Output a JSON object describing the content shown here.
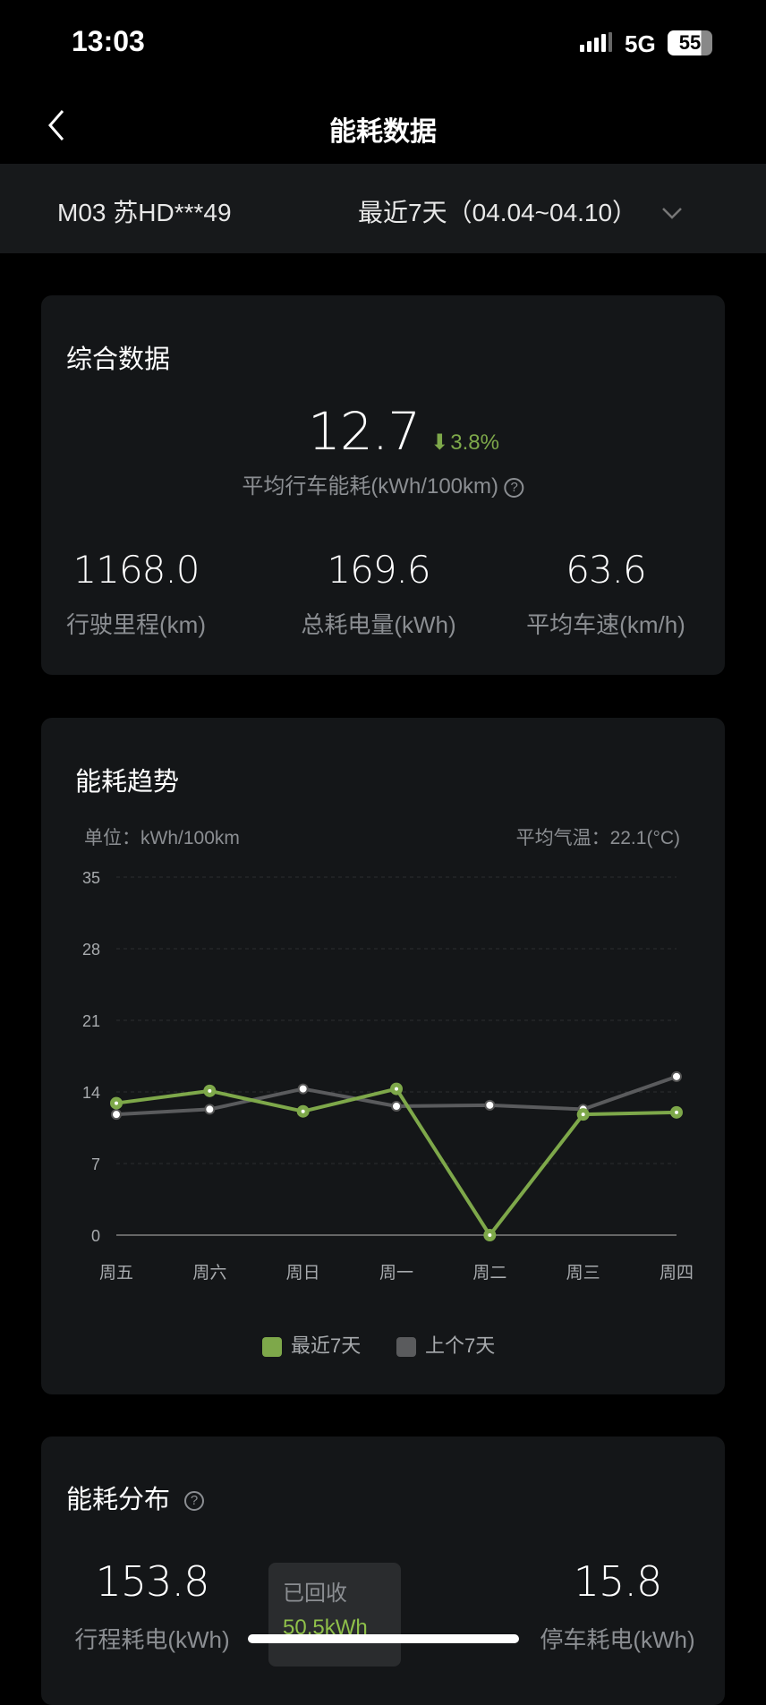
{
  "status_bar": {
    "time": "13:03",
    "network": "5G",
    "battery": "55"
  },
  "nav": {
    "title": "能耗数据",
    "back_icon": "chevron-left-icon"
  },
  "vehicle_bar": {
    "vehicle": "M03 苏HD***49",
    "period": "最近7天（04.04~04.10）"
  },
  "summary": {
    "title": "综合数据",
    "avg_consumption": "12.7",
    "change": "3.8%",
    "change_direction": "down",
    "avg_label": "平均行车能耗(kWh/100km)",
    "stats": [
      {
        "value": "1168.0",
        "label": "行驶里程(km)"
      },
      {
        "value": "169.6",
        "label": "总耗电量(kWh)"
      },
      {
        "value": "63.6",
        "label": "平均车速(km/h)"
      }
    ]
  },
  "trend": {
    "title": "能耗趋势",
    "unit": "单位：kWh/100km",
    "temperature": "平均气温：22.1(°C)"
  },
  "chart_data": {
    "type": "line",
    "categories": [
      "周五",
      "周六",
      "周日",
      "周一",
      "周二",
      "周三",
      "周四"
    ],
    "yticks": [
      "0",
      "7",
      "14",
      "21",
      "28",
      "35"
    ],
    "ylim": [
      0,
      35
    ],
    "grid": true,
    "legend_placement": "bottom",
    "series": [
      {
        "name": "最近7天",
        "color": "#7ea84a",
        "values": [
          12.9,
          14.1,
          12.1,
          14.3,
          0,
          11.8,
          12.0
        ]
      },
      {
        "name": "上个7天",
        "color": "#5a5b5d",
        "values": [
          11.8,
          12.3,
          14.3,
          12.6,
          12.7,
          12.3,
          15.5
        ]
      }
    ]
  },
  "distribution": {
    "title": "能耗分布",
    "trip": {
      "value": "153.8",
      "label": "行程耗电(kWh)"
    },
    "recovered": {
      "label": "已回收",
      "value": "50.5kWh"
    },
    "parking": {
      "value": "15.8",
      "label": "停车耗电(kWh)"
    }
  },
  "colors": {
    "accent": "#7ea84a",
    "card": "#141618",
    "background": "#000000"
  }
}
